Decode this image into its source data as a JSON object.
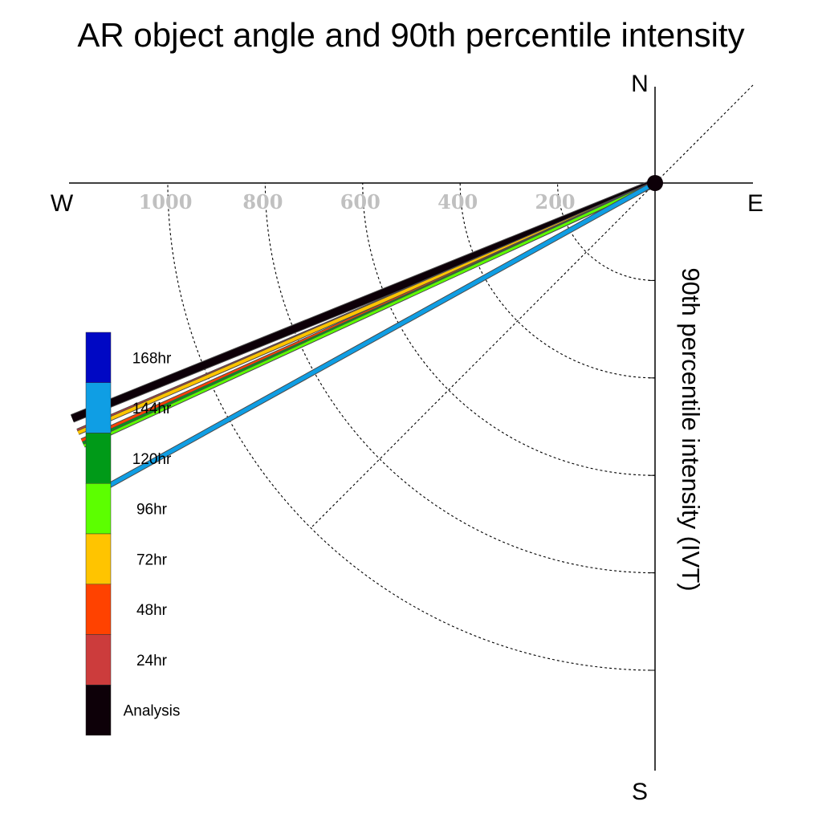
{
  "chart_data": {
    "type": "polar-wind-rose",
    "title": "AR object angle and 90th percentile intensity",
    "ylabel": "90th percentile intensity (IVT)",
    "compass": {
      "north": "N",
      "south": "S",
      "east": "E",
      "west": "W"
    },
    "radial_ticks": [
      "1000",
      "800",
      "600",
      "400",
      "200"
    ],
    "radial_tick_values": [
      1000,
      800,
      600,
      400,
      200
    ],
    "radial_max": 1200,
    "series": [
      {
        "name": "Analysis",
        "color": "#0d0008",
        "angle_deg": 248.0,
        "intensity": 1290,
        "width": 9
      },
      {
        "name": "24hr",
        "color": "#cc3c3c",
        "angle_deg": 246.8,
        "intensity": 1290,
        "width": 3
      },
      {
        "name": "72hr",
        "color": "#ffc400",
        "angle_deg": 246.6,
        "intensity": 1290,
        "width": 4
      },
      {
        "name": "48hr",
        "color": "#ff4200",
        "angle_deg": 245.8,
        "intensity": 1290,
        "width": 4
      },
      {
        "name": "120hr",
        "color": "#009a18",
        "angle_deg": 245.5,
        "intensity": 1290,
        "width": 4
      },
      {
        "name": "96hr",
        "color": "#5cff00",
        "angle_deg": 245.3,
        "intensity": 1290,
        "width": 3
      },
      {
        "name": "144hr",
        "color": "#0f9ee4",
        "angle_deg": 241.0,
        "intensity": 1290,
        "width": 5
      },
      {
        "name": "168hr",
        "color": "#0008c4",
        "angle_deg": 241.0,
        "intensity": 1290,
        "width": 0
      }
    ],
    "legend": [
      {
        "label": "168hr",
        "color": "#0008c4"
      },
      {
        "label": "144hr",
        "color": "#0f9ee4"
      },
      {
        "label": "120hr",
        "color": "#009a18"
      },
      {
        "label": "96hr",
        "color": "#5cff00"
      },
      {
        "label": "72hr",
        "color": "#ffc400"
      },
      {
        "label": "48hr",
        "color": "#ff4200"
      },
      {
        "label": "24hr",
        "color": "#cc3c3c"
      },
      {
        "label": "Analysis",
        "color": "#0d0008"
      }
    ],
    "legend_placement": "left",
    "grid": true
  }
}
